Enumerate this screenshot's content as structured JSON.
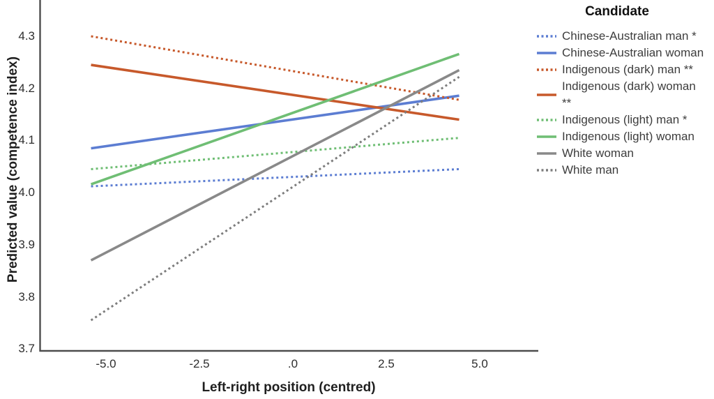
{
  "chart_data": {
    "type": "line",
    "title": "",
    "xlabel": "Left-right position (centred)",
    "ylabel": "Predicted value (competence index)",
    "legend_title": "Candidate",
    "legend_position": "right",
    "grid": false,
    "xlim": [
      -6.8,
      6.55
    ],
    "ylim": [
      3.696,
      4.37
    ],
    "x_ticks": [
      {
        "value": -5.0,
        "label": "-5.0"
      },
      {
        "value": -2.5,
        "label": "-2.5"
      },
      {
        "value": 0.0,
        "label": ".0"
      },
      {
        "value": 2.5,
        "label": "2.5"
      },
      {
        "value": 5.0,
        "label": "5.0"
      }
    ],
    "y_ticks": [
      {
        "value": 3.7,
        "label": "3.7"
      },
      {
        "value": 3.8,
        "label": "3.8"
      },
      {
        "value": 3.9,
        "label": "3.9"
      },
      {
        "value": 4.0,
        "label": "4.0"
      },
      {
        "value": 4.1,
        "label": "4.1"
      },
      {
        "value": 4.2,
        "label": "4.2"
      },
      {
        "value": 4.3,
        "label": "4.3"
      }
    ],
    "series": [
      {
        "name": "Chinese-Australian man *",
        "color": "#5C7DD2",
        "style": "dotted",
        "x": [
          -5.4,
          4.45
        ],
        "y": [
          4.012,
          4.045
        ]
      },
      {
        "name": "Chinese-Australian woman",
        "color": "#5C7DD2",
        "style": "solid",
        "x": [
          -5.4,
          4.45
        ],
        "y": [
          4.085,
          4.186
        ]
      },
      {
        "name": "Indigenous (dark) man **",
        "color": "#C7592B",
        "style": "dotted",
        "x": [
          -5.4,
          4.45
        ],
        "y": [
          4.3,
          4.178
        ]
      },
      {
        "name": "Indigenous (dark) woman **",
        "color": "#C7592B",
        "style": "solid",
        "x": [
          -5.4,
          4.45
        ],
        "y": [
          4.245,
          4.14
        ]
      },
      {
        "name": "Indigenous (light) man *",
        "color": "#6FBE74",
        "style": "dotted",
        "x": [
          -5.4,
          4.45
        ],
        "y": [
          4.045,
          4.105
        ]
      },
      {
        "name": "Indigenous (light) woman",
        "color": "#6FBE74",
        "style": "solid",
        "x": [
          -5.4,
          4.45
        ],
        "y": [
          4.016,
          4.266
        ]
      },
      {
        "name": "White woman",
        "color": "#898989",
        "style": "solid",
        "x": [
          -5.4,
          4.45
        ],
        "y": [
          3.87,
          4.235
        ]
      },
      {
        "name": "White man",
        "color": "#7D7D7D",
        "style": "dotted",
        "x": [
          -5.4,
          4.45
        ],
        "y": [
          3.755,
          4.222
        ]
      }
    ],
    "axis_color": "#4d4d4d"
  }
}
